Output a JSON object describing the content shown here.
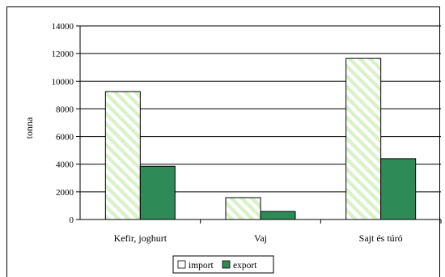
{
  "chart_data": {
    "type": "bar",
    "title": "",
    "xlabel": "",
    "ylabel": "tonna",
    "ylim": [
      0,
      14000
    ],
    "yticks": [
      0,
      2000,
      4000,
      6000,
      8000,
      10000,
      12000,
      14000
    ],
    "categories": [
      "Kefir, joghurt",
      "Vaj",
      "Sajt és túró"
    ],
    "series": [
      {
        "name": "import",
        "values": [
          9250,
          1580,
          11650
        ],
        "color": "#e3f5d8",
        "pattern": "diagonal-hatch"
      },
      {
        "name": "export",
        "values": [
          3850,
          580,
          4400
        ],
        "color": "#2e8b57"
      }
    ],
    "grid": true,
    "legend_position": "bottom-center"
  }
}
